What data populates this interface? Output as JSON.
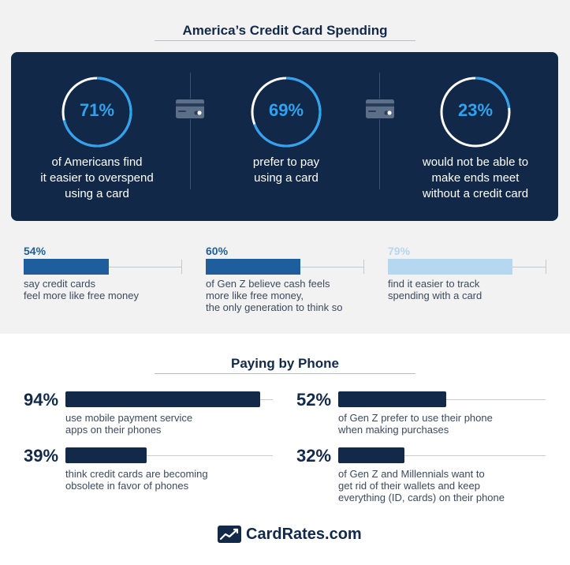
{
  "title_top": "America’s Credit Card Spending",
  "rings": [
    {
      "percent": "71%",
      "value": 71,
      "lines": [
        "of Americans find",
        "it easier to overspend",
        "using a card"
      ]
    },
    {
      "percent": "69%",
      "value": 69,
      "lines": [
        "prefer to pay",
        "using a card"
      ]
    },
    {
      "percent": "23%",
      "value": 23,
      "lines": [
        "would not be able to",
        "make ends meet",
        "without a credit card"
      ]
    }
  ],
  "colors": {
    "dark": "#122848",
    "accent": "#2ea3f2",
    "bar_mid": "#1f5e9c",
    "bar_light": "#b5d7ef",
    "navy": "#12294a"
  },
  "stats": [
    {
      "percent": "54%",
      "value": 54,
      "lines": [
        "say credit cards",
        "feel more like free money"
      ]
    },
    {
      "percent": "60%",
      "value": 60,
      "lines": [
        "of Gen Z believe cash feels",
        "more like free money,",
        "the only generation to think so"
      ]
    },
    {
      "percent": "79%",
      "value": 79,
      "lines": [
        "find it easier to track",
        "spending with a card"
      ]
    }
  ],
  "title_phone": "Paying by Phone",
  "phone_stats": [
    {
      "percent": "94%",
      "value": 94,
      "lines": [
        "use mobile payment service",
        "apps on their phones"
      ]
    },
    {
      "percent": "52%",
      "value": 52,
      "lines": [
        "of Gen Z prefer to use their phone",
        "when making purchases"
      ]
    },
    {
      "percent": "39%",
      "value": 39,
      "lines": [
        "think credit cards are becoming",
        "obsolete in favor of phones"
      ]
    },
    {
      "percent": "32%",
      "value": 32,
      "lines": [
        "of Gen Z and Millennials want to",
        "get rid of their wallets and keep",
        "everything (ID, cards) on their phone"
      ]
    }
  ],
  "brand": {
    "name": "CardRates.com",
    "logo": "chart-logo-icon"
  },
  "chart_data": [
    {
      "type": "pie",
      "title": "America’s Credit Card Spending",
      "categories": [
        "of Americans find it easier to overspend using a card",
        "prefer to pay using a card",
        "would not be able to make ends meet without a credit card"
      ],
      "values": [
        71,
        69,
        23
      ],
      "unit": "%"
    },
    {
      "type": "bar",
      "categories": [
        "say credit cards feel more like free money",
        "of Gen Z believe cash feels more like free money, the only generation to think so",
        "find it easier to track spending with a card"
      ],
      "values": [
        54,
        60,
        79
      ],
      "unit": "%"
    },
    {
      "type": "bar",
      "title": "Paying by Phone",
      "categories": [
        "use mobile payment service apps on their phones",
        "of Gen Z prefer to use their phone when making purchases",
        "think credit cards are becoming obsolete in favor of phones",
        "of Gen Z and Millennials want to get rid of their wallets and keep everything (ID, cards) on their phone"
      ],
      "values": [
        94,
        52,
        39,
        32
      ],
      "unit": "%"
    }
  ]
}
